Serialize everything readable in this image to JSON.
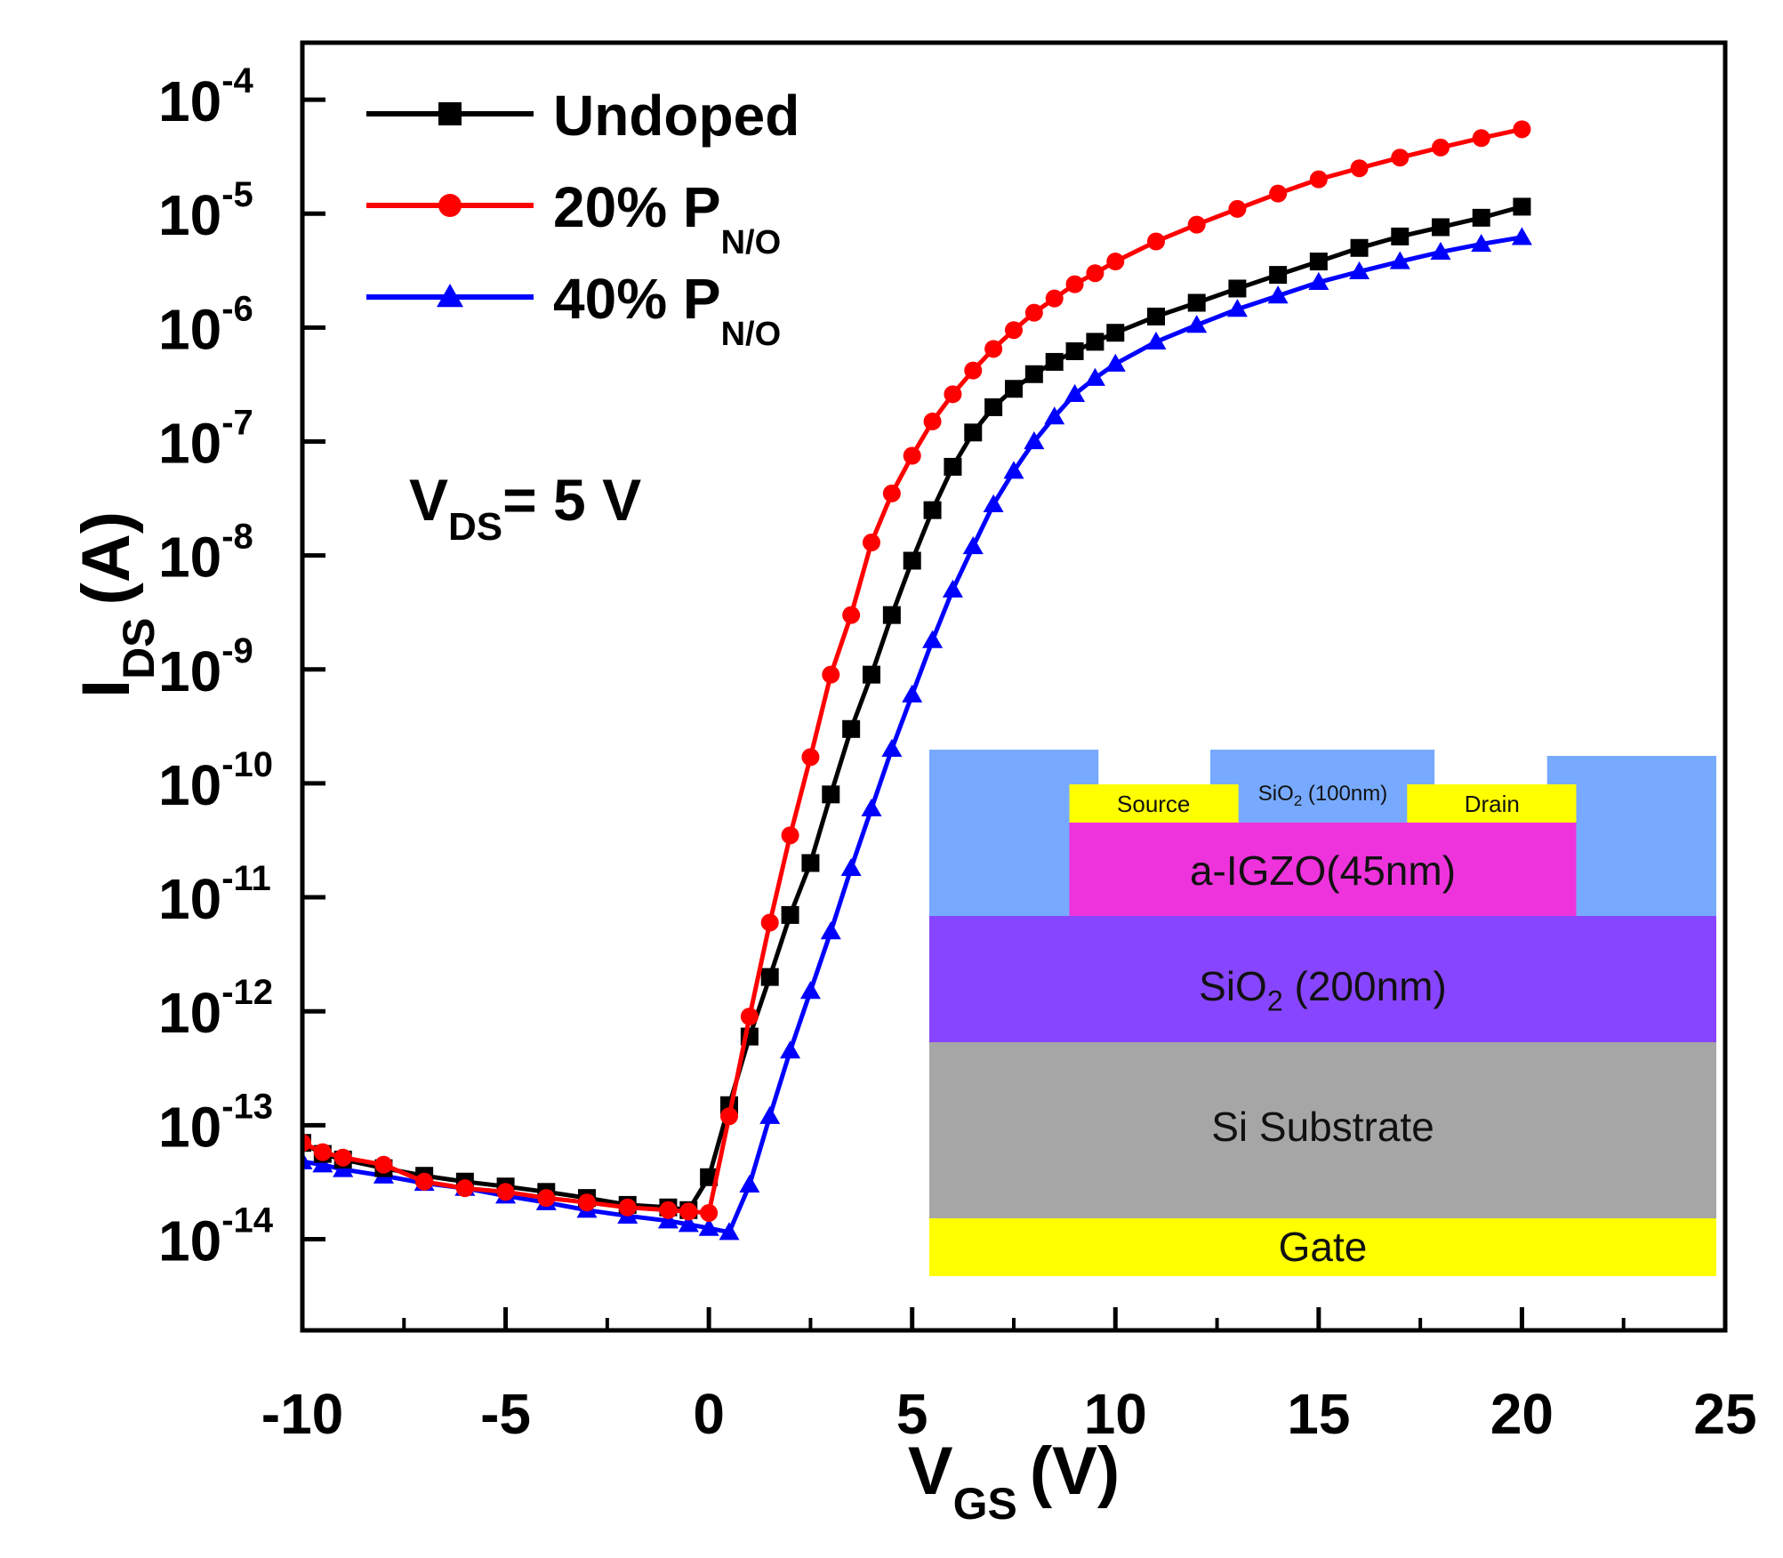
{
  "chart_data": {
    "type": "line",
    "title": "",
    "xlabel": {
      "main": "V",
      "sub": "GS",
      "unit": "(V)"
    },
    "ylabel": {
      "main": "I",
      "sub": "DS",
      "unit": "(A)"
    },
    "xlim": [
      -10,
      25
    ],
    "ylim_exponent": [
      -14.8,
      -3.5
    ],
    "y_scale": "log",
    "x_tick_labels": [
      "-10",
      "-5",
      "0",
      "5",
      "10",
      "15",
      "20",
      "25"
    ],
    "y_tick_labels": [
      {
        "base": "10",
        "exp": "-14"
      },
      {
        "base": "10",
        "exp": "-13"
      },
      {
        "base": "10",
        "exp": "-12"
      },
      {
        "base": "10",
        "exp": "-11"
      },
      {
        "base": "10",
        "exp": "-10"
      },
      {
        "base": "10",
        "exp": "-9"
      },
      {
        "base": "10",
        "exp": "-8"
      },
      {
        "base": "10",
        "exp": "-7"
      },
      {
        "base": "10",
        "exp": "-6"
      },
      {
        "base": "10",
        "exp": "-5"
      },
      {
        "base": "10",
        "exp": "-4"
      }
    ],
    "grid": false,
    "legend_position": "top-left",
    "annotation": {
      "main": "V",
      "sub": "DS",
      "rest": "= 5 V"
    },
    "series": [
      {
        "name": "Undoped",
        "name_sub": "",
        "color": "#000000",
        "marker": "square",
        "points": [
          [
            -10,
            7e-14
          ],
          [
            -9.5,
            5.6e-14
          ],
          [
            -9,
            5e-14
          ],
          [
            -8,
            4.2e-14
          ],
          [
            -7,
            3.6e-14
          ],
          [
            -6,
            3.2e-14
          ],
          [
            -5,
            2.9e-14
          ],
          [
            -4,
            2.6e-14
          ],
          [
            -3,
            2.3e-14
          ],
          [
            -2,
            2e-14
          ],
          [
            -1,
            1.9e-14
          ],
          [
            -0.5,
            1.8e-14
          ],
          [
            0,
            3.5e-14
          ],
          [
            0.5,
            1.5e-13
          ],
          [
            1,
            6e-13
          ],
          [
            1.5,
            2e-12
          ],
          [
            2,
            7e-12
          ],
          [
            2.5,
            2e-11
          ],
          [
            3,
            8e-11
          ],
          [
            3.5,
            3e-10
          ],
          [
            4,
            9e-10
          ],
          [
            4.5,
            3e-09
          ],
          [
            5,
            9e-09
          ],
          [
            5.5,
            2.5e-08
          ],
          [
            6,
            6e-08
          ],
          [
            6.5,
            1.2e-07
          ],
          [
            7,
            2e-07
          ],
          [
            7.5,
            2.9e-07
          ],
          [
            8,
            3.9e-07
          ],
          [
            8.5,
            5e-07
          ],
          [
            9,
            6.2e-07
          ],
          [
            9.5,
            7.5e-07
          ],
          [
            10,
            9e-07
          ],
          [
            11,
            1.25e-06
          ],
          [
            12,
            1.65e-06
          ],
          [
            13,
            2.2e-06
          ],
          [
            14,
            2.9e-06
          ],
          [
            15,
            3.8e-06
          ],
          [
            16,
            5e-06
          ],
          [
            17,
            6.3e-06
          ],
          [
            18,
            7.6e-06
          ],
          [
            19,
            9.2e-06
          ],
          [
            20,
            1.15e-05
          ]
        ]
      },
      {
        "name": "20% P",
        "name_sub": "N/O",
        "color": "#ff0000",
        "marker": "circle",
        "points": [
          [
            -10,
            7e-14
          ],
          [
            -9.5,
            5.8e-14
          ],
          [
            -9,
            5.2e-14
          ],
          [
            -8,
            4.5e-14
          ],
          [
            -7,
            3.2e-14
          ],
          [
            -6,
            2.8e-14
          ],
          [
            -5,
            2.6e-14
          ],
          [
            -4,
            2.3e-14
          ],
          [
            -3,
            2.1e-14
          ],
          [
            -2,
            1.9e-14
          ],
          [
            -1,
            1.8e-14
          ],
          [
            -0.5,
            1.75e-14
          ],
          [
            0,
            1.7e-14
          ],
          [
            0.5,
            1.2e-13
          ],
          [
            1,
            9e-13
          ],
          [
            1.5,
            6e-12
          ],
          [
            2,
            3.5e-11
          ],
          [
            2.5,
            1.7e-10
          ],
          [
            3,
            9e-10
          ],
          [
            3.5,
            3e-09
          ],
          [
            4,
            1.3e-08
          ],
          [
            4.5,
            3.5e-08
          ],
          [
            5,
            7.5e-08
          ],
          [
            5.5,
            1.5e-07
          ],
          [
            6,
            2.6e-07
          ],
          [
            6.5,
            4.2e-07
          ],
          [
            7,
            6.5e-07
          ],
          [
            7.5,
            9.5e-07
          ],
          [
            8,
            1.35e-06
          ],
          [
            8.5,
            1.8e-06
          ],
          [
            9,
            2.4e-06
          ],
          [
            9.5,
            3e-06
          ],
          [
            10,
            3.8e-06
          ],
          [
            11,
            5.7e-06
          ],
          [
            12,
            8e-06
          ],
          [
            13,
            1.1e-05
          ],
          [
            14,
            1.5e-05
          ],
          [
            15,
            2e-05
          ],
          [
            16,
            2.5e-05
          ],
          [
            17,
            3.1e-05
          ],
          [
            18,
            3.8e-05
          ],
          [
            19,
            4.6e-05
          ],
          [
            20,
            5.5e-05
          ]
        ]
      },
      {
        "name": "40% P",
        "name_sub": "N/O",
        "color": "#0000ff",
        "marker": "triangle",
        "points": [
          [
            -10,
            4.8e-14
          ],
          [
            -9.5,
            4.5e-14
          ],
          [
            -9,
            4.1e-14
          ],
          [
            -8,
            3.6e-14
          ],
          [
            -7,
            3.1e-14
          ],
          [
            -6,
            2.8e-14
          ],
          [
            -5,
            2.4e-14
          ],
          [
            -4,
            2.1e-14
          ],
          [
            -3,
            1.8e-14
          ],
          [
            -2,
            1.6e-14
          ],
          [
            -1,
            1.45e-14
          ],
          [
            -0.5,
            1.35e-14
          ],
          [
            0,
            1.25e-14
          ],
          [
            0.5,
            1.15e-14
          ],
          [
            1,
            3e-14
          ],
          [
            1.5,
            1.2e-13
          ],
          [
            2,
            4.5e-13
          ],
          [
            2.5,
            1.5e-12
          ],
          [
            3,
            5e-12
          ],
          [
            3.5,
            1.8e-11
          ],
          [
            4,
            6e-11
          ],
          [
            4.5,
            2e-10
          ],
          [
            5,
            6e-10
          ],
          [
            5.5,
            1.8e-09
          ],
          [
            6,
            5e-09
          ],
          [
            6.5,
            1.2e-08
          ],
          [
            7,
            2.8e-08
          ],
          [
            7.5,
            5.5e-08
          ],
          [
            8,
            1e-07
          ],
          [
            8.5,
            1.65e-07
          ],
          [
            9,
            2.6e-07
          ],
          [
            9.5,
            3.6e-07
          ],
          [
            10,
            4.8e-07
          ],
          [
            11,
            7.5e-07
          ],
          [
            12,
            1.05e-06
          ],
          [
            13,
            1.45e-06
          ],
          [
            14,
            1.9e-06
          ],
          [
            15,
            2.5e-06
          ],
          [
            16,
            3.1e-06
          ],
          [
            17,
            3.8e-06
          ],
          [
            18,
            4.6e-06
          ],
          [
            19,
            5.4e-06
          ],
          [
            20,
            6.2e-06
          ]
        ]
      }
    ]
  },
  "inset": {
    "layers": [
      {
        "key": "gate",
        "label": "Gate",
        "color": "#ffff00"
      },
      {
        "key": "si",
        "label": "Si Substrate",
        "color": "#a6a6a6"
      },
      {
        "key": "sio2",
        "label": "SiO",
        "label_sub": "2",
        "label_rest": " (200nm)",
        "color": "#8845ff"
      },
      {
        "key": "igzo",
        "label": "a-IGZO(45nm)",
        "color": "#ee33dd"
      },
      {
        "key": "passivation",
        "label": "SiO",
        "label_sub": "2",
        "label_rest": " (100nm)",
        "color": "#77aaff"
      },
      {
        "key": "source",
        "label": "Source",
        "color": "#ffff00"
      },
      {
        "key": "drain",
        "label": "Drain",
        "color": "#ffff00"
      }
    ]
  }
}
